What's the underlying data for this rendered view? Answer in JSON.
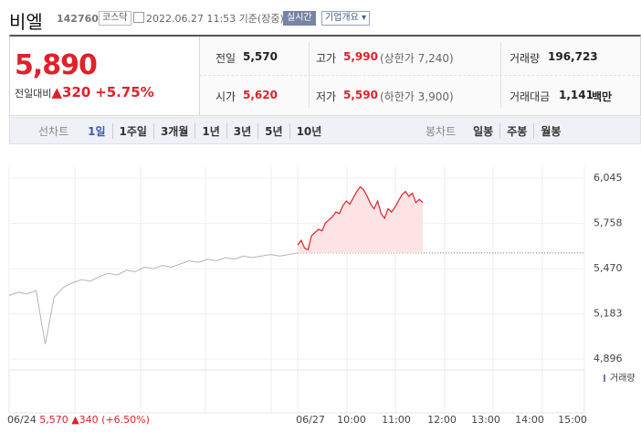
{
  "header": {
    "name": "비엘",
    "code": "142760",
    "market": "코스닥",
    "time": "2022.06.27 11:53 기준(장중)",
    "realtime": "실시간",
    "company": "기업개요"
  },
  "quote": {
    "price": "5,890",
    "change_label": "전일대비",
    "change": "320",
    "change_rate": "+5.75%",
    "stats": [
      {
        "label": "전일",
        "value": "5,570"
      },
      {
        "label": "고가",
        "value": "5,990",
        "note": "(상한가 7,240)"
      },
      {
        "label": "거래량",
        "value": "196,723"
      },
      {
        "label": "시가",
        "value": "5,620"
      },
      {
        "label": "저가",
        "value": "5,590",
        "note": "(하한가 3,900)"
      },
      {
        "label": "거래대금",
        "value": "1,141",
        "unit": "백만"
      }
    ]
  },
  "tabs": {
    "line_label": "선차트",
    "line": [
      "1일",
      "1주일",
      "3개월",
      "1년",
      "3년",
      "5년",
      "10년"
    ],
    "candle_label": "봉차트",
    "candle": [
      "일봉",
      "주봉",
      "월봉"
    ]
  },
  "chart_data": {
    "type": "line",
    "x_labels": [
      "06/27",
      "10:00",
      "11:00",
      "12:00",
      "13:00",
      "14:00",
      "15:00"
    ],
    "ylim": [
      4896,
      6045
    ],
    "yticks": [
      {
        "value": 4896,
        "label": "4,896"
      },
      {
        "value": 5183,
        "label": "5,183"
      },
      {
        "value": 5470,
        "label": "5,470"
      },
      {
        "value": 5758,
        "label": "5,758"
      },
      {
        "value": 6045,
        "label": "6,045"
      }
    ],
    "baseline": 5570,
    "series": [
      {
        "color": "#b4b4b4",
        "values": [
          5300,
          5320,
          5310,
          5330,
          4990,
          5290,
          5350,
          5380,
          5400,
          5390,
          5420,
          5440,
          5430,
          5460,
          5450,
          5480,
          5470,
          5490,
          5480,
          5500,
          5520,
          5510,
          5530,
          5520,
          5540,
          5530,
          5550,
          5540,
          5550,
          5560,
          5550,
          5560,
          5570
        ]
      },
      {
        "color": "#e0212a",
        "values": [
          5620,
          5650,
          5600,
          5590,
          5680,
          5700,
          5720,
          5710,
          5760,
          5780,
          5800,
          5830,
          5820,
          5870,
          5900,
          5880,
          5920,
          5960,
          5990,
          5970,
          5930,
          5880,
          5850,
          5900,
          5820,
          5790,
          5850,
          5830,
          5860,
          5900,
          5940,
          5960,
          5930,
          5950,
          5890,
          5910,
          5890
        ]
      }
    ],
    "volume_label": "거래량"
  },
  "footer": {
    "date": "06/24",
    "price": "5,570",
    "change": "340",
    "rate": "(+6.50%)"
  }
}
